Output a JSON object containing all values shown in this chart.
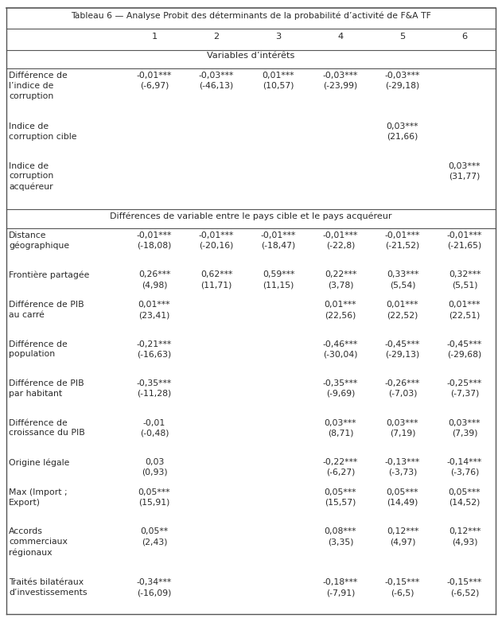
{
  "title_top": "Tableau 6 — Analyse Probit des déterminants de la probabilité d’activité de F&A TF",
  "col_headers": [
    "1",
    "2",
    "3",
    "4",
    "5",
    "6"
  ],
  "section1_header": "Variables d’intérêts",
  "section2_header": "Différences de variable entre le pays cible et le pays acquéreur",
  "rows": [
    {
      "label": "Différence de\nl’indice de\ncorruption",
      "cols": [
        "-0,01***\n(-6,97)",
        "-0,03***\n(-46,13)",
        "0,01***\n(10,57)",
        "-0,03***\n(-23,99)",
        "-0,03***\n(-29,18)",
        ""
      ]
    },
    {
      "label": "Indice de\ncorruption cible",
      "cols": [
        "",
        "",
        "",
        "",
        "0,03***\n(21,66)",
        ""
      ]
    },
    {
      "label": "Indice de\ncorruption\nacquéreur",
      "cols": [
        "",
        "",
        "",
        "",
        "",
        "0,03***\n(31,77)"
      ]
    },
    {
      "label": "Distance\ngéographique",
      "cols": [
        "-0,01***\n(-18,08)",
        "-0,01***\n(-20,16)",
        "-0,01***\n(-18,47)",
        "-0,01***\n(-22,8)",
        "-0,01***\n(-21,52)",
        "-0,01***\n(-21,65)"
      ]
    },
    {
      "label": "Frontière partagée",
      "cols": [
        "0,26***\n(4,98)",
        "0,62***\n(11,71)",
        "0,59***\n(11,15)",
        "0,22***\n(3,78)",
        "0,33***\n(5,54)",
        "0,32***\n(5,51)"
      ]
    },
    {
      "label": "Différence de PIB\nau carré",
      "cols": [
        "0,01***\n(23,41)",
        "",
        "",
        "0,01***\n(22,56)",
        "0,01***\n(22,52)",
        "0,01***\n(22,51)"
      ]
    },
    {
      "label": "Différence de\npopulation",
      "cols": [
        "-0,21***\n(-16,63)",
        "",
        "",
        "-0,46***\n(-30,04)",
        "-0,45***\n(-29,13)",
        "-0,45***\n(-29,68)"
      ]
    },
    {
      "label": "Différence de PIB\npar habitant",
      "cols": [
        "-0,35***\n(-11,28)",
        "",
        "",
        "-0,35***\n(-9,69)",
        "-0,26***\n(-7,03)",
        "-0,25***\n(-7,37)"
      ]
    },
    {
      "label": "Différence de\ncroissance du PIB",
      "cols": [
        "-0,01\n(-0,48)",
        "",
        "",
        "0,03***\n(8,71)",
        "0,03***\n(7,19)",
        "0,03***\n(7,39)"
      ]
    },
    {
      "label": "Origine légale",
      "cols": [
        "0,03\n(0,93)",
        "",
        "",
        "-0,22***\n(-6,27)",
        "-0,13***\n(-3,73)",
        "-0,14***\n(-3,76)"
      ]
    },
    {
      "label": "Max (Import ;\nExport)",
      "cols": [
        "0,05***\n(15,91)",
        "",
        "",
        "0,05***\n(15,57)",
        "0,05***\n(14,49)",
        "0,05***\n(14,52)"
      ]
    },
    {
      "label": "Accords\ncommerciaux\nrégionaux",
      "cols": [
        "0,05**\n(2,43)",
        "",
        "",
        "0,08***\n(3,35)",
        "0,12***\n(4,97)",
        "0,12***\n(4,93)"
      ]
    },
    {
      "label": "Traités bilatéraux\nd’investissements",
      "cols": [
        "-0,34***\n(-16,09)",
        "",
        "",
        "-0,18***\n(-7,91)",
        "-0,15***\n(-6,5)",
        "-0,15***\n(-6,52)"
      ]
    }
  ],
  "bg_color": "#ffffff",
  "text_color": "#2a2a2a",
  "line_color": "#555555",
  "font_size": 7.8,
  "header_font_size": 8.2,
  "title_font_size": 7.8
}
